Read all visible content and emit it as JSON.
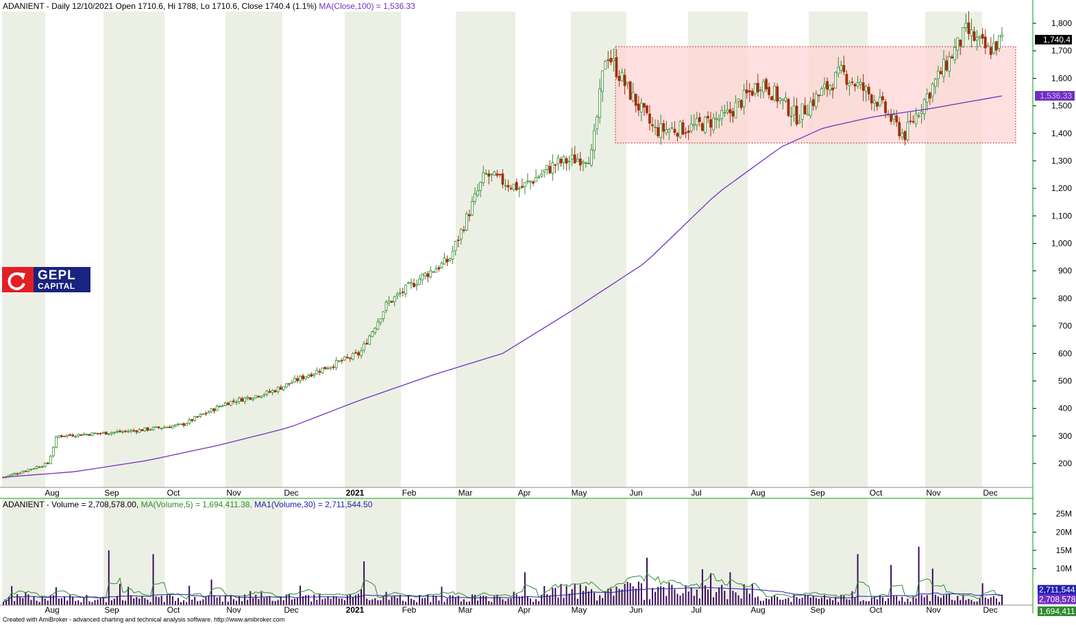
{
  "header": {
    "symbol": "ADANIENT",
    "price_info": " - Daily 12/10/2021 Open 1710.6, Hi 1788, Lo 1710.6, Close 1740.4 (1.1%)",
    "ma_label": "MA(Close,100) = 1,536.33"
  },
  "volume_header": {
    "prefix": "ADANIENT - Volume = 2,708,578.00,",
    "ma5_label": "MA(Volume,5) = 1,694,411.38,",
    "ma30_label": "MA1(Volume,30) = 2,711,544.50"
  },
  "logo": {
    "line1": "GEPL",
    "line2": "CAPITAL"
  },
  "footer": "Created with AmiBroker - advanced charting and technical analysis software. http://www.amibroker.com",
  "colors": {
    "up": "#2e8b2e",
    "down": "#a0300a",
    "ma": "#7030c0",
    "ma5": "#2e8b2e",
    "ma30": "#2020b0",
    "zone_fill": "#ffd6d6",
    "zone_border": "#c03030",
    "volume_bar": "#3a0a5a",
    "axis_green": "#00a000",
    "band": "#ecefe4"
  },
  "chart_data": [
    {
      "type": "candlestick",
      "title": "ADANIENT - Daily 12/10/2021 Open 1710.6, Hi 1788, Lo 1710.6, Close 1740.4 (1.1%)",
      "y_ticks": [
        200,
        300,
        400,
        500,
        600,
        700,
        800,
        900,
        1000,
        1100,
        1200,
        1300,
        1400,
        1500,
        1600,
        1700,
        1800
      ],
      "ylim": [
        130,
        1810
      ],
      "x_tick_labels": [
        "Aug",
        "Sep",
        "Oct",
        "Nov",
        "Dec",
        "2021",
        "Feb",
        "Mar",
        "Apr",
        "May",
        "Jun",
        "Jul",
        "Aug",
        "Sep",
        "Oct",
        "Nov",
        "Dec"
      ],
      "last_close": 1740.4,
      "last_close_label": "1,740.4",
      "ma100_last": 1536.33,
      "ma100_label": "1,536.33",
      "consolidation_zone": {
        "low": 1365,
        "high": 1715,
        "start": "Jun",
        "end": "Dec"
      },
      "series": [
        {
          "name": "MA(Close,100)",
          "x": [
            "Jul",
            "Aug",
            "Sep",
            "Oct",
            "Nov",
            "Dec",
            "2021",
            "Feb",
            "Mar",
            "Apr",
            "May",
            "Jun",
            "Jul",
            "Aug",
            "Sep",
            "Oct",
            "Nov",
            "Dec"
          ],
          "values": [
            155,
            165,
            185,
            215,
            250,
            300,
            360,
            420,
            520,
            660,
            820,
            980,
            1200,
            1350,
            1440,
            1490,
            1490,
            1536
          ]
        },
        {
          "name": "Close",
          "x": [
            "Jul",
            "Aug",
            "Sep",
            "Oct",
            "Nov",
            "Dec",
            "2021",
            "Feb",
            "Mar",
            "Apr",
            "May",
            "Jun",
            "Jun",
            "Jul",
            "Aug",
            "Sep",
            "Oct",
            "Nov",
            "Dec"
          ],
          "values": [
            150,
            210,
            290,
            320,
            350,
            430,
            500,
            720,
            890,
            1180,
            1280,
            1320,
            1700,
            1410,
            1450,
            1580,
            1480,
            1600,
            1740
          ]
        }
      ]
    },
    {
      "type": "bar",
      "title": "ADANIENT - Volume = 2,708,578.00, MA(Volume,5) = 1,694,411.38, MA1(Volume,30) = 2,711,544.50",
      "y_ticks": [
        "10M",
        "15M",
        "20M",
        "25M"
      ],
      "ylim": [
        0,
        27000000
      ],
      "value_labels": [
        "2,711,544",
        "2,708,578",
        "1,694,411"
      ],
      "series": [
        {
          "name": "MA(Volume,5)",
          "last": 1694411.38
        },
        {
          "name": "MA1(Volume,30)",
          "last": 2711544.5
        },
        {
          "name": "Volume",
          "last": 2708578.0
        }
      ]
    }
  ]
}
